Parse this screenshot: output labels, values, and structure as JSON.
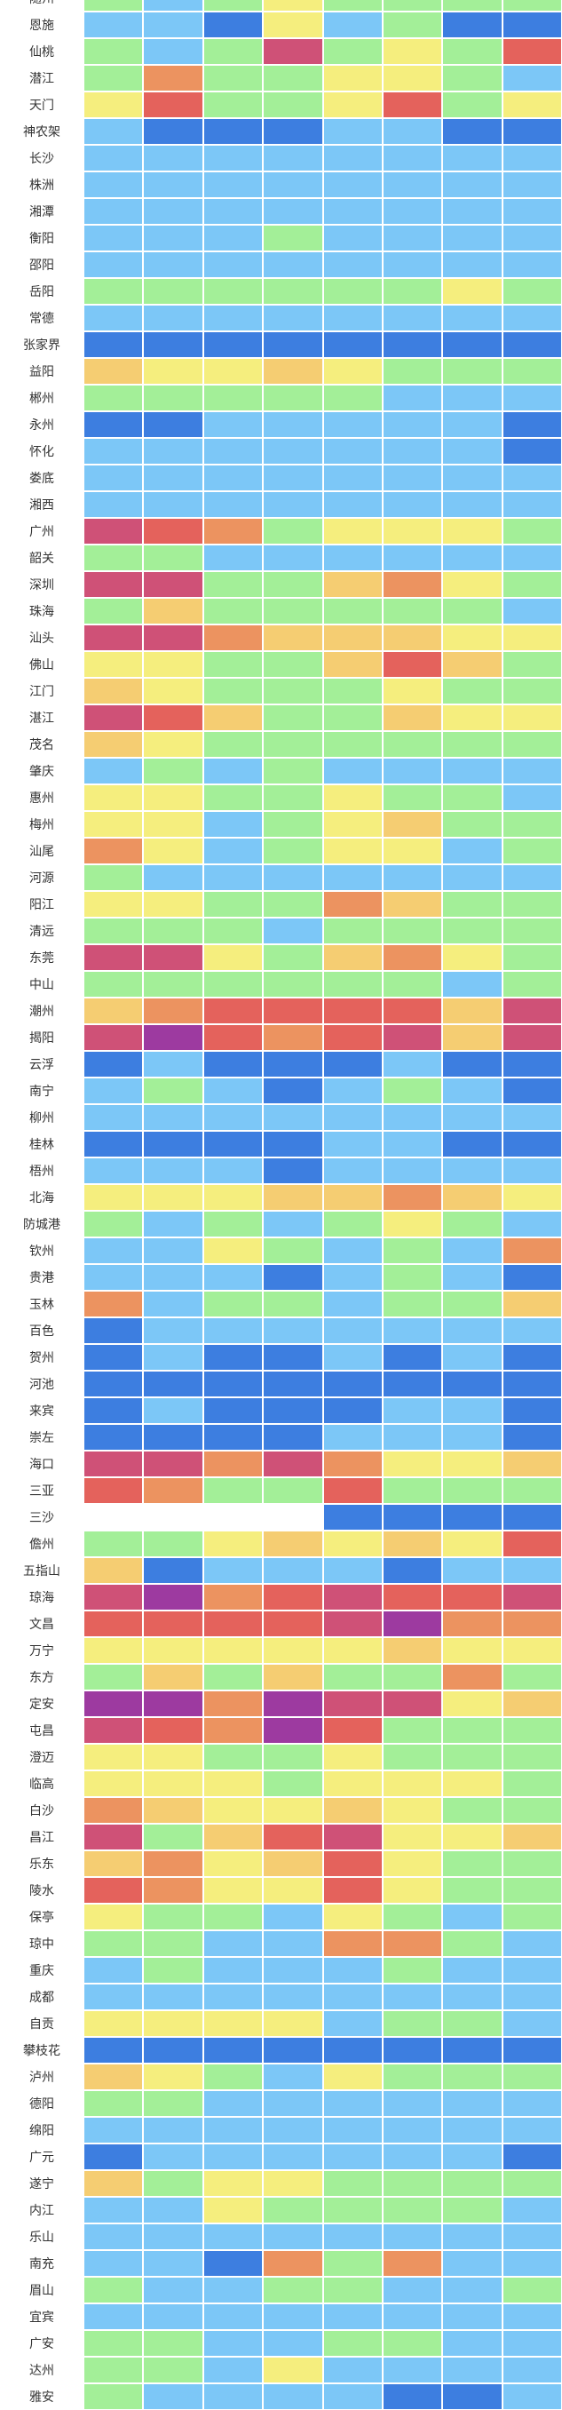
{
  "palette": [
    "#3d7ee0",
    "#7cc7f7",
    "#a3ef98",
    "#f5ee7e",
    "#f5cd72",
    "#ec9360",
    "#e4625c",
    "#cf5177",
    "#9d3aa0"
  ],
  "rows": [
    {
      "city": "随州",
      "levels": [
        2,
        1,
        2,
        3,
        2,
        2,
        2,
        2
      ]
    },
    {
      "city": "恩施",
      "levels": [
        1,
        1,
        0,
        3,
        1,
        2,
        0,
        0
      ]
    },
    {
      "city": "仙桃",
      "levels": [
        2,
        1,
        2,
        7,
        2,
        3,
        2,
        6
      ]
    },
    {
      "city": "潜江",
      "levels": [
        2,
        5,
        2,
        2,
        3,
        3,
        2,
        1
      ]
    },
    {
      "city": "天门",
      "levels": [
        3,
        6,
        2,
        2,
        3,
        6,
        2,
        3
      ]
    },
    {
      "city": "神农架",
      "levels": [
        1,
        0,
        0,
        0,
        1,
        1,
        0,
        0
      ]
    },
    {
      "city": "长沙",
      "levels": [
        1,
        1,
        1,
        1,
        1,
        1,
        1,
        1
      ]
    },
    {
      "city": "株洲",
      "levels": [
        1,
        1,
        1,
        1,
        1,
        1,
        1,
        1
      ]
    },
    {
      "city": "湘潭",
      "levels": [
        1,
        1,
        1,
        1,
        1,
        1,
        1,
        1
      ]
    },
    {
      "city": "衡阳",
      "levels": [
        1,
        1,
        1,
        2,
        1,
        1,
        1,
        1
      ]
    },
    {
      "city": "邵阳",
      "levels": [
        1,
        1,
        1,
        1,
        1,
        1,
        1,
        1
      ]
    },
    {
      "city": "岳阳",
      "levels": [
        2,
        2,
        2,
        2,
        2,
        2,
        3,
        2
      ]
    },
    {
      "city": "常德",
      "levels": [
        1,
        1,
        1,
        1,
        1,
        1,
        1,
        1
      ]
    },
    {
      "city": "张家界",
      "levels": [
        0,
        0,
        0,
        0,
        0,
        0,
        0,
        0
      ]
    },
    {
      "city": "益阳",
      "levels": [
        4,
        3,
        3,
        4,
        3,
        2,
        2,
        2
      ]
    },
    {
      "city": "郴州",
      "levels": [
        2,
        2,
        2,
        2,
        2,
        1,
        1,
        1
      ]
    },
    {
      "city": "永州",
      "levels": [
        0,
        0,
        1,
        1,
        1,
        1,
        1,
        0
      ]
    },
    {
      "city": "怀化",
      "levels": [
        1,
        1,
        1,
        1,
        1,
        1,
        1,
        0
      ]
    },
    {
      "city": "娄底",
      "levels": [
        1,
        1,
        1,
        1,
        1,
        1,
        1,
        1
      ]
    },
    {
      "city": "湘西",
      "levels": [
        1,
        1,
        1,
        1,
        1,
        1,
        1,
        1
      ]
    },
    {
      "city": "广州",
      "levels": [
        7,
        6,
        5,
        2,
        3,
        3,
        3,
        2
      ]
    },
    {
      "city": "韶关",
      "levels": [
        2,
        2,
        1,
        1,
        1,
        1,
        1,
        1
      ]
    },
    {
      "city": "深圳",
      "levels": [
        7,
        7,
        2,
        2,
        4,
        5,
        3,
        2
      ]
    },
    {
      "city": "珠海",
      "levels": [
        2,
        4,
        2,
        2,
        2,
        2,
        2,
        1
      ]
    },
    {
      "city": "汕头",
      "levels": [
        7,
        7,
        5,
        4,
        4,
        4,
        3,
        3
      ]
    },
    {
      "city": "佛山",
      "levels": [
        3,
        3,
        2,
        2,
        4,
        6,
        4,
        2
      ]
    },
    {
      "city": "江门",
      "levels": [
        4,
        3,
        2,
        2,
        2,
        3,
        2,
        2
      ]
    },
    {
      "city": "湛江",
      "levels": [
        7,
        6,
        4,
        2,
        2,
        4,
        3,
        3
      ]
    },
    {
      "city": "茂名",
      "levels": [
        4,
        3,
        2,
        2,
        2,
        2,
        2,
        2
      ]
    },
    {
      "city": "肇庆",
      "levels": [
        1,
        2,
        1,
        2,
        1,
        1,
        1,
        1
      ]
    },
    {
      "city": "惠州",
      "levels": [
        3,
        3,
        2,
        2,
        3,
        2,
        2,
        1
      ]
    },
    {
      "city": "梅州",
      "levels": [
        3,
        3,
        1,
        2,
        3,
        4,
        2,
        2
      ]
    },
    {
      "city": "汕尾",
      "levels": [
        5,
        3,
        1,
        2,
        3,
        3,
        1,
        2
      ]
    },
    {
      "city": "河源",
      "levels": [
        2,
        1,
        1,
        1,
        1,
        1,
        1,
        1
      ]
    },
    {
      "city": "阳江",
      "levels": [
        3,
        3,
        2,
        2,
        5,
        4,
        2,
        2
      ]
    },
    {
      "city": "清远",
      "levels": [
        2,
        2,
        2,
        1,
        2,
        2,
        2,
        2
      ]
    },
    {
      "city": "东莞",
      "levels": [
        7,
        7,
        3,
        2,
        4,
        5,
        3,
        2
      ]
    },
    {
      "city": "中山",
      "levels": [
        2,
        2,
        2,
        2,
        2,
        2,
        1,
        2
      ]
    },
    {
      "city": "潮州",
      "levels": [
        4,
        5,
        6,
        6,
        6,
        6,
        4,
        7
      ]
    },
    {
      "city": "揭阳",
      "levels": [
        7,
        8,
        6,
        5,
        6,
        7,
        4,
        7
      ]
    },
    {
      "city": "云浮",
      "levels": [
        0,
        1,
        0,
        0,
        0,
        1,
        0,
        0
      ]
    },
    {
      "city": "南宁",
      "levels": [
        1,
        2,
        1,
        0,
        1,
        2,
        1,
        0
      ]
    },
    {
      "city": "柳州",
      "levels": [
        1,
        1,
        1,
        1,
        1,
        1,
        1,
        1
      ]
    },
    {
      "city": "桂林",
      "levels": [
        0,
        0,
        0,
        0,
        1,
        1,
        0,
        0
      ]
    },
    {
      "city": "梧州",
      "levels": [
        1,
        1,
        1,
        0,
        1,
        1,
        1,
        1
      ]
    },
    {
      "city": "北海",
      "levels": [
        3,
        3,
        3,
        4,
        4,
        5,
        4,
        3
      ]
    },
    {
      "city": "防城港",
      "levels": [
        2,
        1,
        2,
        1,
        2,
        3,
        2,
        1
      ]
    },
    {
      "city": "钦州",
      "levels": [
        1,
        1,
        3,
        2,
        1,
        2,
        1,
        5
      ]
    },
    {
      "city": "贵港",
      "levels": [
        1,
        1,
        1,
        0,
        1,
        2,
        1,
        0
      ]
    },
    {
      "city": "玉林",
      "levels": [
        5,
        1,
        2,
        2,
        1,
        2,
        2,
        4
      ]
    },
    {
      "city": "百色",
      "levels": [
        0,
        1,
        1,
        1,
        1,
        1,
        1,
        1
      ]
    },
    {
      "city": "贺州",
      "levels": [
        0,
        1,
        0,
        0,
        1,
        0,
        1,
        0
      ]
    },
    {
      "city": "河池",
      "levels": [
        0,
        0,
        0,
        0,
        0,
        0,
        0,
        0
      ]
    },
    {
      "city": "来宾",
      "levels": [
        0,
        1,
        0,
        0,
        0,
        1,
        1,
        0
      ]
    },
    {
      "city": "崇左",
      "levels": [
        0,
        0,
        0,
        0,
        1,
        1,
        1,
        0
      ]
    },
    {
      "city": "海口",
      "levels": [
        7,
        7,
        5,
        7,
        5,
        3,
        3,
        4
      ]
    },
    {
      "city": "三亚",
      "levels": [
        6,
        5,
        2,
        2,
        6,
        2,
        2,
        2
      ]
    },
    {
      "city": "三沙",
      "levels": [
        null,
        null,
        null,
        null,
        0,
        0,
        0,
        0
      ]
    },
    {
      "city": "儋州",
      "levels": [
        2,
        2,
        3,
        4,
        3,
        4,
        3,
        6
      ]
    },
    {
      "city": "五指山",
      "levels": [
        4,
        0,
        1,
        1,
        1,
        0,
        1,
        1
      ]
    },
    {
      "city": "琼海",
      "levels": [
        7,
        8,
        5,
        6,
        7,
        6,
        6,
        7
      ]
    },
    {
      "city": "文昌",
      "levels": [
        6,
        6,
        6,
        6,
        7,
        8,
        5,
        5
      ]
    },
    {
      "city": "万宁",
      "levels": [
        3,
        3,
        3,
        3,
        3,
        4,
        3,
        3
      ]
    },
    {
      "city": "东方",
      "levels": [
        2,
        4,
        2,
        4,
        2,
        2,
        5,
        2
      ]
    },
    {
      "city": "定安",
      "levels": [
        8,
        8,
        5,
        8,
        7,
        7,
        3,
        4
      ]
    },
    {
      "city": "屯昌",
      "levels": [
        7,
        6,
        5,
        8,
        6,
        2,
        2,
        2
      ]
    },
    {
      "city": "澄迈",
      "levels": [
        3,
        3,
        2,
        2,
        3,
        2,
        2,
        2
      ]
    },
    {
      "city": "临高",
      "levels": [
        3,
        3,
        3,
        2,
        3,
        3,
        3,
        2
      ]
    },
    {
      "city": "白沙",
      "levels": [
        5,
        4,
        3,
        3,
        4,
        3,
        2,
        2
      ]
    },
    {
      "city": "昌江",
      "levels": [
        7,
        2,
        4,
        6,
        7,
        3,
        3,
        4
      ]
    },
    {
      "city": "乐东",
      "levels": [
        4,
        5,
        3,
        4,
        6,
        3,
        2,
        2
      ]
    },
    {
      "city": "陵水",
      "levels": [
        6,
        5,
        3,
        3,
        6,
        3,
        2,
        2
      ]
    },
    {
      "city": "保亭",
      "levels": [
        3,
        2,
        2,
        1,
        3,
        2,
        1,
        2
      ]
    },
    {
      "city": "琼中",
      "levels": [
        2,
        2,
        1,
        1,
        5,
        5,
        2,
        1
      ]
    },
    {
      "city": "重庆",
      "levels": [
        1,
        2,
        1,
        1,
        1,
        2,
        1,
        1
      ]
    },
    {
      "city": "成都",
      "levels": [
        1,
        1,
        1,
        1,
        1,
        1,
        1,
        1
      ]
    },
    {
      "city": "自贡",
      "levels": [
        3,
        3,
        3,
        3,
        1,
        2,
        2,
        1
      ]
    },
    {
      "city": "攀枝花",
      "levels": [
        0,
        0,
        0,
        0,
        0,
        0,
        0,
        0
      ]
    },
    {
      "city": "泸州",
      "levels": [
        4,
        3,
        2,
        1,
        3,
        2,
        2,
        2
      ]
    },
    {
      "city": "德阳",
      "levels": [
        2,
        2,
        1,
        1,
        1,
        1,
        1,
        1
      ]
    },
    {
      "city": "绵阳",
      "levels": [
        1,
        1,
        1,
        1,
        1,
        1,
        1,
        1
      ]
    },
    {
      "city": "广元",
      "levels": [
        0,
        1,
        1,
        1,
        1,
        1,
        1,
        0
      ]
    },
    {
      "city": "遂宁",
      "levels": [
        4,
        2,
        3,
        3,
        2,
        2,
        2,
        2
      ]
    },
    {
      "city": "内江",
      "levels": [
        1,
        1,
        3,
        2,
        2,
        2,
        2,
        1
      ]
    },
    {
      "city": "乐山",
      "levels": [
        1,
        1,
        1,
        1,
        1,
        1,
        1,
        1
      ]
    },
    {
      "city": "南充",
      "levels": [
        1,
        1,
        0,
        5,
        2,
        5,
        1,
        1
      ]
    },
    {
      "city": "眉山",
      "levels": [
        2,
        1,
        1,
        2,
        2,
        1,
        1,
        2
      ]
    },
    {
      "city": "宜宾",
      "levels": [
        1,
        1,
        1,
        1,
        1,
        1,
        1,
        1
      ]
    },
    {
      "city": "广安",
      "levels": [
        2,
        2,
        1,
        1,
        2,
        2,
        1,
        1
      ]
    },
    {
      "city": "达州",
      "levels": [
        2,
        2,
        1,
        3,
        1,
        1,
        1,
        1
      ]
    },
    {
      "city": "雅安",
      "levels": [
        2,
        1,
        1,
        1,
        1,
        0,
        0,
        1
      ]
    }
  ]
}
